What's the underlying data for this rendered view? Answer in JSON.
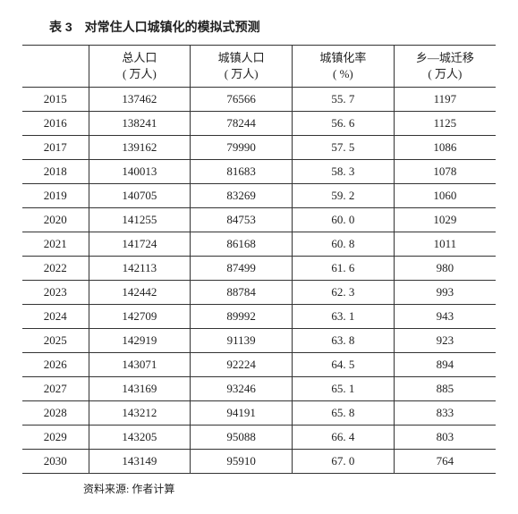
{
  "title": "表 3　对常住人口城镇化的模拟式预测",
  "columns": [
    {
      "label": "",
      "unit": ""
    },
    {
      "label": "总人口",
      "unit": "( 万人)"
    },
    {
      "label": "城镇人口",
      "unit": "( 万人)"
    },
    {
      "label": "城镇化率",
      "unit": "( %)"
    },
    {
      "label": "乡—城迁移",
      "unit": "( 万人)"
    }
  ],
  "rows": [
    {
      "year": "2015",
      "total": "137462",
      "urban": "76566",
      "rate": "55. 7",
      "mig": "1197"
    },
    {
      "year": "2016",
      "total": "138241",
      "urban": "78244",
      "rate": "56. 6",
      "mig": "1125"
    },
    {
      "year": "2017",
      "total": "139162",
      "urban": "79990",
      "rate": "57. 5",
      "mig": "1086"
    },
    {
      "year": "2018",
      "total": "140013",
      "urban": "81683",
      "rate": "58. 3",
      "mig": "1078"
    },
    {
      "year": "2019",
      "total": "140705",
      "urban": "83269",
      "rate": "59. 2",
      "mig": "1060"
    },
    {
      "year": "2020",
      "total": "141255",
      "urban": "84753",
      "rate": "60. 0",
      "mig": "1029"
    },
    {
      "year": "2021",
      "total": "141724",
      "urban": "86168",
      "rate": "60. 8",
      "mig": "1011"
    },
    {
      "year": "2022",
      "total": "142113",
      "urban": "87499",
      "rate": "61. 6",
      "mig": "980"
    },
    {
      "year": "2023",
      "total": "142442",
      "urban": "88784",
      "rate": "62. 3",
      "mig": "993"
    },
    {
      "year": "2024",
      "total": "142709",
      "urban": "89992",
      "rate": "63. 1",
      "mig": "943"
    },
    {
      "year": "2025",
      "total": "142919",
      "urban": "91139",
      "rate": "63. 8",
      "mig": "923"
    },
    {
      "year": "2026",
      "total": "143071",
      "urban": "92224",
      "rate": "64. 5",
      "mig": "894"
    },
    {
      "year": "2027",
      "total": "143169",
      "urban": "93246",
      "rate": "65. 1",
      "mig": "885"
    },
    {
      "year": "2028",
      "total": "143212",
      "urban": "94191",
      "rate": "65. 8",
      "mig": "833"
    },
    {
      "year": "2029",
      "total": "143205",
      "urban": "95088",
      "rate": "66. 4",
      "mig": "803"
    },
    {
      "year": "2030",
      "total": "143149",
      "urban": "95910",
      "rate": "67. 0",
      "mig": "764"
    }
  ],
  "source": "资料来源: 作者计算"
}
